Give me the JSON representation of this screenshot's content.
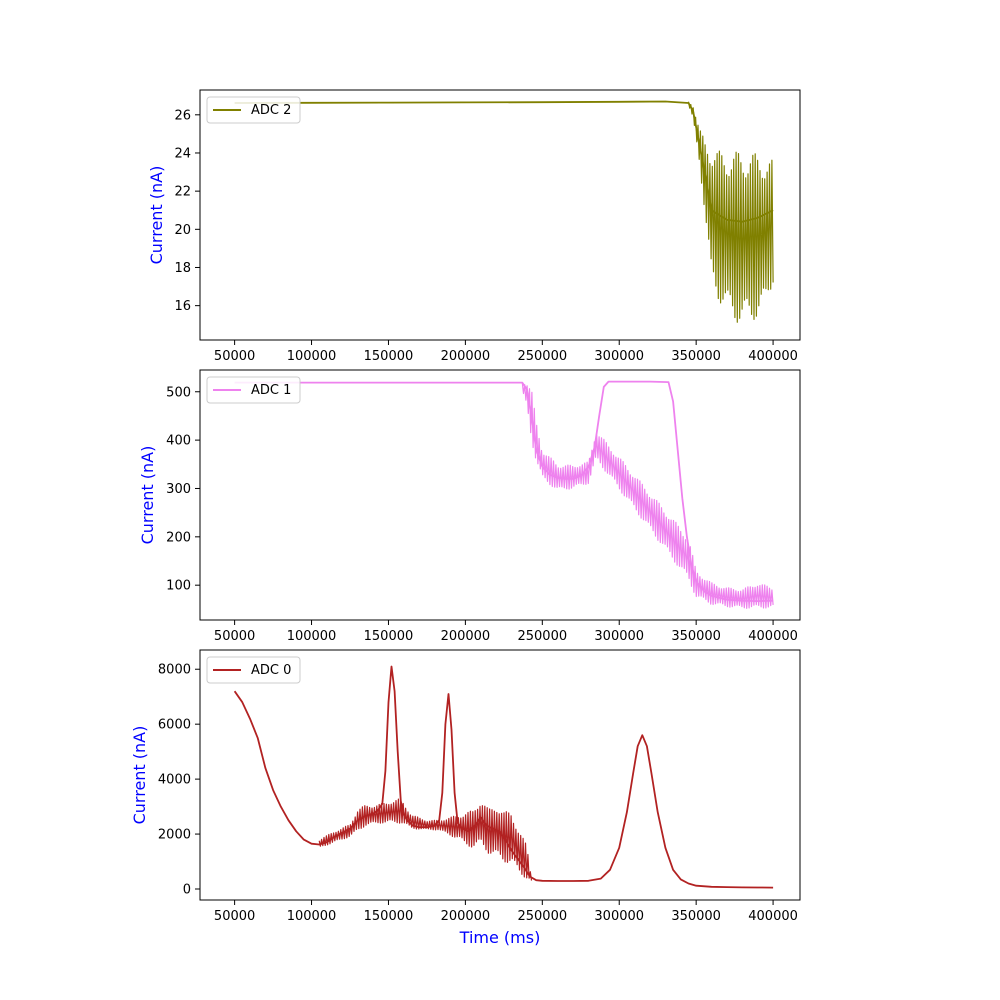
{
  "chart_data": [
    {
      "type": "line",
      "title": "",
      "xlabel": "",
      "ylabel": "Current (nA)",
      "xlim": [
        27500,
        417500
      ],
      "ylim": [
        14.2,
        27.3
      ],
      "xticks": [
        50000,
        100000,
        150000,
        200000,
        250000,
        300000,
        350000,
        400000
      ],
      "xtick_labels": [
        "50000",
        "100000",
        "150000",
        "200000",
        "250000",
        "300000",
        "350000",
        "400000"
      ],
      "yticks": [
        16,
        18,
        20,
        22,
        24,
        26
      ],
      "ytick_labels": [
        "16",
        "18",
        "20",
        "22",
        "24",
        "26"
      ],
      "legend_position": "top-left",
      "grid": false,
      "series": [
        {
          "name": "ADC 2",
          "color": "#808000",
          "x": [
            50000,
            100000,
            150000,
            200000,
            250000,
            300000,
            330000,
            345000,
            348000,
            352000,
            356000,
            360000,
            370000,
            380000,
            390000,
            400000
          ],
          "y": [
            26.62,
            26.63,
            26.64,
            26.65,
            26.66,
            26.68,
            26.7,
            26.62,
            26.2,
            24.5,
            22.8,
            21.0,
            20.5,
            20.4,
            20.6,
            21.0
          ],
          "noise_band": {
            "x": [
              345000,
              348000,
              352000,
              356000,
              360000,
              365000,
              370000,
              375000,
              380000,
              385000,
              390000,
              395000,
              400000
            ],
            "low": [
              26.5,
              25.8,
              23.6,
              20.5,
              17.2,
              16.2,
              15.6,
              15.2,
              15.0,
              15.1,
              15.4,
              15.8,
              17.2
            ],
            "high": [
              26.7,
              26.5,
              25.3,
              24.6,
              24.3,
              24.1,
              24.0,
              24.1,
              24.0,
              24.1,
              23.9,
              23.8,
              23.6
            ]
          }
        }
      ]
    },
    {
      "type": "line",
      "title": "",
      "xlabel": "",
      "ylabel": "Current (nA)",
      "xlim": [
        27500,
        417500
      ],
      "ylim": [
        28,
        545
      ],
      "xticks": [
        50000,
        100000,
        150000,
        200000,
        250000,
        300000,
        350000,
        400000
      ],
      "xtick_labels": [
        "50000",
        "100000",
        "150000",
        "200000",
        "250000",
        "300000",
        "350000",
        "400000"
      ],
      "yticks": [
        100,
        200,
        300,
        400,
        500
      ],
      "ytick_labels": [
        "100",
        "200",
        "300",
        "400",
        "500"
      ],
      "legend_position": "top-left",
      "grid": false,
      "series": [
        {
          "name": "ADC 1",
          "color": "#ee82ee",
          "x": [
            50000,
            100000,
            150000,
            200000,
            237000,
            240000,
            243000,
            246000,
            250000,
            255000,
            260000,
            265000,
            270000,
            275000,
            280000,
            284000,
            287000,
            290000,
            293000,
            300000,
            320000,
            332000,
            335000,
            338000,
            341000,
            344000,
            347000,
            350000,
            355000,
            360000,
            370000,
            380000,
            390000,
            400000
          ],
          "y": [
            519,
            519,
            519,
            519,
            519,
            505,
            450,
            380,
            345,
            328,
            322,
            320,
            320,
            326,
            345,
            385,
            450,
            510,
            521,
            521,
            521,
            520,
            480,
            380,
            280,
            200,
            140,
            108,
            88,
            78,
            70,
            68,
            67,
            68
          ],
          "noise_band": {
            "x": [
              237000,
              240000,
              243000,
              246000,
              250000,
              260000,
              270000,
              280000,
              285000,
              345000,
              350000,
              360000,
              370000,
              380000,
              390000,
              400000
            ],
            "low": [
              500,
              470,
              400,
              355,
              320,
              295,
              300,
              310,
              360,
              110,
              75,
              60,
              55,
              52,
              52,
              53
            ],
            "high": [
              521,
              519,
              505,
              440,
              380,
              350,
              348,
              355,
              420,
              200,
              130,
              105,
              95,
              92,
              105,
              95
            ]
          }
        }
      ]
    },
    {
      "type": "line",
      "title": "",
      "xlabel": "Time (ms)",
      "ylabel": "Current (nA)",
      "xlim": [
        27500,
        417500
      ],
      "ylim": [
        -400,
        8700
      ],
      "xticks": [
        50000,
        100000,
        150000,
        200000,
        250000,
        300000,
        350000,
        400000
      ],
      "xtick_labels": [
        "50000",
        "100000",
        "150000",
        "200000",
        "250000",
        "300000",
        "350000",
        "400000"
      ],
      "yticks": [
        0,
        2000,
        4000,
        6000,
        8000
      ],
      "ytick_labels": [
        "0",
        "2000",
        "4000",
        "6000",
        "8000"
      ],
      "legend_position": "top-left",
      "grid": false,
      "series": [
        {
          "name": "ADC 0",
          "color": "#b22222",
          "x": [
            50000,
            55000,
            60000,
            65000,
            70000,
            75000,
            80000,
            85000,
            90000,
            95000,
            100000,
            105000,
            110000,
            115000,
            120000,
            125000,
            130000,
            135000,
            140000,
            143000,
            146000,
            148000,
            150000,
            152000,
            154000,
            156000,
            158000,
            160000,
            163000,
            166000,
            170000,
            175000,
            180000,
            183000,
            185000,
            187000,
            189000,
            191000,
            193000,
            195000,
            198000,
            202000,
            206000,
            210000,
            214000,
            218000,
            222000,
            226000,
            230000,
            234000,
            238000,
            242000,
            246000,
            250000,
            260000,
            270000,
            280000,
            288000,
            294000,
            300000,
            305000,
            309000,
            312000,
            315000,
            318000,
            321000,
            325000,
            330000,
            335000,
            340000,
            345000,
            350000,
            360000,
            370000,
            380000,
            390000,
            400000
          ],
          "y": [
            7200,
            6800,
            6200,
            5500,
            4400,
            3600,
            3000,
            2500,
            2100,
            1800,
            1650,
            1620,
            1700,
            1900,
            2050,
            2200,
            2500,
            2650,
            2750,
            2850,
            3100,
            4300,
            6800,
            8100,
            7200,
            5000,
            3200,
            2700,
            2450,
            2300,
            2250,
            2250,
            2300,
            2500,
            3500,
            6000,
            7100,
            5800,
            3500,
            2400,
            2200,
            2100,
            2300,
            2600,
            2300,
            2200,
            2100,
            1800,
            1400,
            1100,
            800,
            450,
            320,
            300,
            290,
            290,
            300,
            380,
            700,
            1500,
            2800,
            4200,
            5200,
            5600,
            5200,
            4200,
            2800,
            1500,
            700,
            350,
            200,
            120,
            80,
            70,
            60,
            55,
            50
          ],
          "noise_band": {
            "x": [
              105000,
              115000,
              125000,
              130000,
              135000,
              140000,
              145000,
              158000,
              165000,
              175000,
              182000,
              196000,
              200000,
              205000,
              210000,
              215000,
              220000,
              225000,
              230000,
              235000,
              240000,
              243000
            ],
            "low": [
              1500,
              1700,
              1900,
              2100,
              2300,
              2350,
              2400,
              2400,
              2200,
              2150,
              2150,
              1800,
              1600,
              1500,
              1600,
              1300,
              1150,
              1000,
              900,
              600,
              350,
              300
            ],
            "high": [
              1800,
              2100,
              2350,
              2900,
              3050,
              3050,
              3100,
              3300,
              2700,
              2500,
              2500,
              2700,
              2800,
              2850,
              3300,
              2900,
              3100,
              2800,
              2850,
              2100,
              1600,
              350
            ]
          }
        }
      ]
    }
  ]
}
